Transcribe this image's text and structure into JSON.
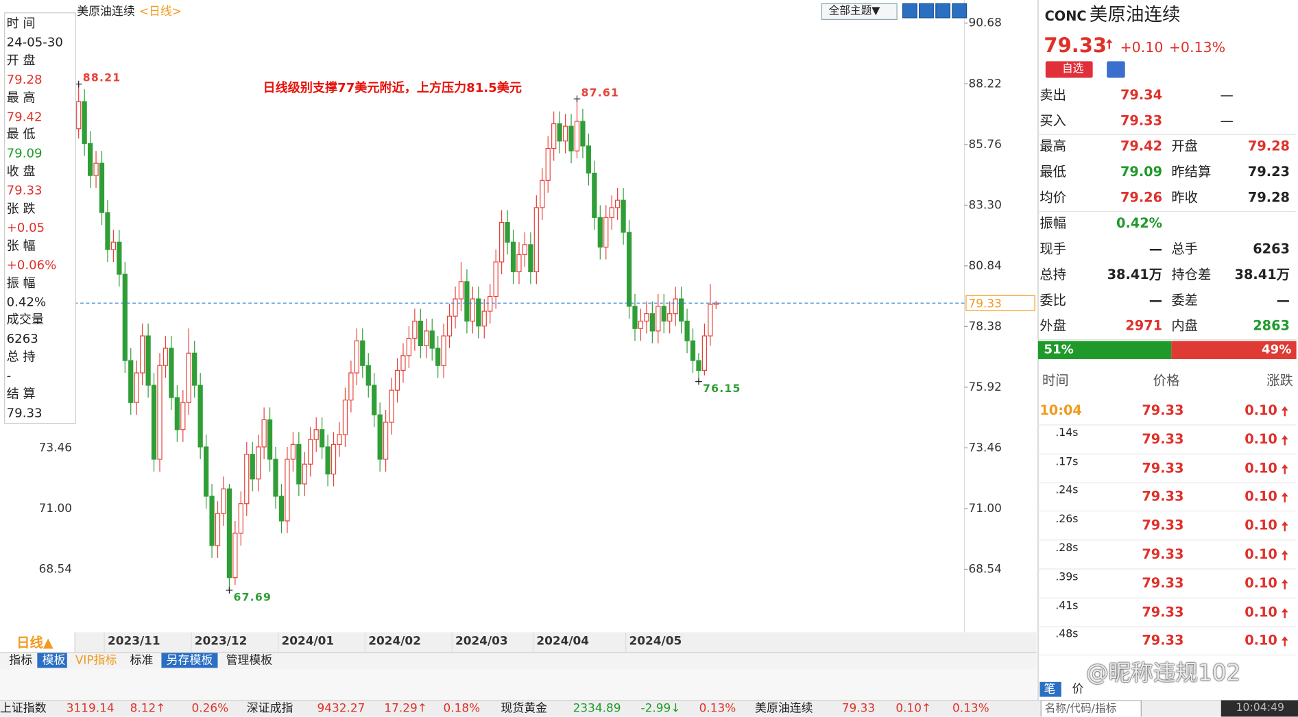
{
  "chart_data": {
    "type": "candlestick",
    "title": "美原油连续",
    "period": "<日线>",
    "annotation": "日线级别支撑77美元附近，上方压力81.5美元",
    "ylim": [
      66.12,
      91.45
    ],
    "yticks": [
      68.54,
      71.0,
      73.46,
      75.92,
      78.38,
      80.84,
      83.3,
      85.76,
      88.22,
      90.68
    ],
    "ytick_labels": [
      "68.54",
      "71.00",
      "73.46",
      "75.92",
      "78.38",
      "80.84",
      "83.30",
      "85.76",
      "88.22",
      "90.68"
    ],
    "up_color": "#e8413a",
    "down_color": "#2f9e36",
    "price_line_color": "#2a7fd0",
    "last_price": 79.33,
    "extremes": [
      88.21,
      87.61,
      67.69,
      76.15
    ],
    "categories": [
      null,
      null,
      null,
      null,
      null,
      "2023/11",
      null,
      null,
      null,
      null,
      null,
      null,
      null,
      null,
      null,
      null,
      null,
      null,
      null,
      null,
      "2023/12",
      null,
      null,
      null,
      null,
      null,
      null,
      null,
      null,
      null,
      null,
      null,
      null,
      null,
      null,
      "2024/01",
      null,
      null,
      null,
      null,
      null,
      null,
      null,
      null,
      null,
      null,
      null,
      null,
      null,
      null,
      "2024/02",
      null,
      null,
      null,
      null,
      null,
      null,
      null,
      null,
      null,
      null,
      null,
      null,
      null,
      null,
      "2024/03",
      null,
      null,
      null,
      null,
      null,
      null,
      null,
      null,
      null,
      null,
      null,
      null,
      null,
      "2024/04",
      null,
      null,
      null,
      null,
      null,
      null,
      null,
      null,
      null,
      null,
      null,
      null,
      null,
      null,
      null,
      "2024/05",
      null,
      null,
      null,
      null,
      null,
      null,
      null,
      null,
      null,
      null,
      null,
      null,
      null,
      null,
      null
    ],
    "ohlc": [
      [
        86.4,
        88.21,
        86.0,
        87.5
      ],
      [
        87.5,
        88.0,
        85.3,
        85.8
      ],
      [
        85.8,
        86.3,
        84.0,
        84.5
      ],
      [
        84.5,
        85.5,
        84.0,
        85.0
      ],
      [
        85.0,
        85.5,
        82.5,
        83.0
      ],
      [
        83.0,
        83.5,
        81.0,
        81.5
      ],
      [
        81.5,
        82.3,
        81.0,
        81.8
      ],
      [
        81.8,
        82.3,
        80.0,
        80.5
      ],
      [
        80.5,
        81.0,
        76.5,
        77.0
      ],
      [
        77.0,
        77.5,
        74.8,
        75.3
      ],
      [
        75.3,
        77.0,
        74.8,
        76.5
      ],
      [
        76.5,
        78.5,
        76.0,
        78.0
      ],
      [
        78.0,
        78.5,
        75.5,
        76.0
      ],
      [
        76.0,
        76.5,
        72.5,
        73.0
      ],
      [
        73.0,
        77.3,
        72.5,
        76.8
      ],
      [
        76.8,
        78.0,
        76.3,
        77.5
      ],
      [
        77.5,
        78.0,
        75.0,
        75.5
      ],
      [
        75.5,
        76.0,
        73.7,
        74.2
      ],
      [
        74.2,
        75.8,
        73.7,
        75.3
      ],
      [
        75.3,
        78.3,
        74.8,
        77.3
      ],
      [
        77.3,
        77.8,
        75.5,
        76.0
      ],
      [
        76.0,
        76.5,
        73.0,
        73.5
      ],
      [
        73.5,
        74.0,
        71.0,
        71.5
      ],
      [
        71.5,
        72.0,
        69.0,
        69.5
      ],
      [
        69.5,
        71.3,
        69.0,
        70.8
      ],
      [
        70.8,
        72.3,
        70.3,
        71.8
      ],
      [
        71.8,
        72.0,
        67.69,
        68.2
      ],
      [
        68.2,
        70.5,
        67.9,
        70.0
      ],
      [
        70.0,
        71.7,
        69.5,
        71.2
      ],
      [
        71.2,
        73.7,
        70.7,
        73.2
      ],
      [
        73.2,
        73.7,
        71.7,
        72.2
      ],
      [
        72.2,
        74.0,
        71.7,
        73.5
      ],
      [
        73.5,
        75.1,
        73.0,
        74.6
      ],
      [
        74.6,
        75.1,
        72.5,
        73.0
      ],
      [
        73.0,
        73.5,
        71.0,
        71.5
      ],
      [
        71.5,
        72.0,
        70.0,
        70.5
      ],
      [
        70.5,
        73.5,
        70.0,
        73.0
      ],
      [
        73.0,
        74.1,
        72.5,
        73.6
      ],
      [
        73.6,
        74.1,
        71.5,
        72.0
      ],
      [
        72.0,
        73.3,
        71.5,
        72.8
      ],
      [
        72.8,
        74.3,
        72.3,
        73.8
      ],
      [
        73.8,
        74.7,
        73.3,
        74.2
      ],
      [
        74.2,
        74.7,
        73.0,
        73.5
      ],
      [
        73.5,
        74.0,
        71.9,
        72.4
      ],
      [
        72.4,
        74.1,
        71.9,
        73.6
      ],
      [
        73.6,
        74.5,
        73.1,
        74.0
      ],
      [
        74.0,
        75.9,
        73.5,
        75.4
      ],
      [
        75.4,
        77.0,
        74.9,
        76.5
      ],
      [
        76.5,
        78.3,
        76.0,
        77.8
      ],
      [
        77.8,
        78.3,
        76.3,
        76.8
      ],
      [
        76.8,
        77.3,
        75.5,
        76.0
      ],
      [
        76.0,
        76.5,
        74.3,
        74.8
      ],
      [
        74.8,
        75.3,
        72.5,
        73.0
      ],
      [
        73.0,
        75.0,
        72.5,
        74.5
      ],
      [
        74.5,
        76.3,
        74.0,
        75.8
      ],
      [
        75.8,
        77.1,
        75.3,
        76.6
      ],
      [
        76.6,
        77.7,
        76.1,
        77.2
      ],
      [
        77.2,
        78.4,
        76.7,
        77.9
      ],
      [
        77.9,
        79.1,
        77.4,
        78.6
      ],
      [
        78.6,
        79.1,
        77.1,
        77.6
      ],
      [
        77.6,
        78.7,
        77.1,
        78.2
      ],
      [
        78.2,
        78.7,
        77.0,
        77.5
      ],
      [
        77.5,
        78.0,
        76.3,
        76.8
      ],
      [
        76.8,
        78.5,
        76.3,
        78.0
      ],
      [
        78.0,
        79.3,
        77.5,
        78.8
      ],
      [
        78.8,
        80.0,
        78.3,
        79.5
      ],
      [
        79.5,
        81.0,
        79.0,
        80.2
      ],
      [
        80.2,
        80.7,
        78.1,
        78.6
      ],
      [
        78.6,
        80.0,
        78.1,
        79.5
      ],
      [
        79.5,
        80.0,
        77.9,
        78.4
      ],
      [
        78.4,
        79.5,
        77.9,
        79.0
      ],
      [
        79.0,
        80.1,
        78.5,
        79.6
      ],
      [
        79.6,
        81.5,
        79.1,
        81.0
      ],
      [
        81.0,
        83.1,
        80.5,
        82.6
      ],
      [
        82.6,
        83.1,
        81.3,
        81.8
      ],
      [
        81.8,
        82.3,
        80.1,
        80.6
      ],
      [
        80.6,
        81.8,
        80.1,
        81.3
      ],
      [
        81.3,
        82.2,
        80.8,
        81.7
      ],
      [
        81.7,
        82.2,
        80.1,
        80.6
      ],
      [
        80.6,
        83.7,
        80.1,
        83.2
      ],
      [
        83.2,
        84.8,
        82.7,
        84.3
      ],
      [
        84.3,
        86.1,
        83.8,
        85.6
      ],
      [
        85.6,
        87.1,
        85.1,
        86.6
      ],
      [
        86.6,
        87.1,
        85.4,
        85.9
      ],
      [
        85.9,
        87.0,
        85.4,
        86.5
      ],
      [
        86.5,
        87.0,
        85.0,
        85.5
      ],
      [
        85.5,
        87.61,
        85.2,
        86.7
      ],
      [
        86.7,
        87.2,
        85.2,
        85.7
      ],
      [
        85.7,
        86.2,
        84.1,
        84.6
      ],
      [
        84.6,
        85.1,
        82.3,
        82.8
      ],
      [
        82.8,
        83.3,
        81.1,
        81.6
      ],
      [
        81.6,
        83.3,
        81.1,
        82.8
      ],
      [
        82.8,
        83.7,
        82.3,
        83.2
      ],
      [
        83.2,
        84.0,
        82.7,
        83.5
      ],
      [
        83.5,
        84.0,
        81.7,
        82.2
      ],
      [
        82.2,
        82.7,
        78.7,
        79.2
      ],
      [
        79.2,
        79.7,
        77.8,
        78.3
      ],
      [
        78.3,
        79.1,
        77.8,
        78.6
      ],
      [
        78.6,
        79.4,
        78.1,
        78.9
      ],
      [
        78.9,
        79.4,
        77.7,
        78.2
      ],
      [
        78.2,
        79.7,
        77.7,
        79.2
      ],
      [
        79.2,
        79.7,
        78.1,
        78.6
      ],
      [
        78.6,
        79.4,
        78.1,
        78.9
      ],
      [
        78.9,
        80.0,
        78.4,
        79.5
      ],
      [
        79.5,
        80.0,
        78.1,
        78.6
      ],
      [
        78.6,
        79.1,
        77.3,
        77.8
      ],
      [
        77.8,
        78.3,
        76.5,
        77.0
      ],
      [
        77.0,
        77.3,
        76.15,
        76.6
      ],
      [
        76.6,
        78.5,
        76.4,
        78.0
      ],
      [
        78.0,
        80.1,
        77.6,
        79.28
      ],
      [
        79.28,
        79.42,
        79.09,
        79.33
      ]
    ]
  },
  "header": {
    "theme_button": "全部主题▼"
  },
  "info_panel": [
    [
      "时 间",
      "24-05-30"
    ],
    [
      "开 盘",
      "79.28"
    ],
    [
      "最 高",
      "79.42"
    ],
    [
      "最 低",
      "79.09"
    ],
    [
      "收 盘",
      "79.33"
    ],
    [
      "张 跌",
      "+0.05"
    ],
    [
      "张 幅",
      "+0.06%"
    ],
    [
      "振 幅",
      "0.42%"
    ],
    [
      "成交量",
      "6263"
    ],
    [
      "总 持",
      "-"
    ],
    [
      "结 算",
      "79.33"
    ]
  ],
  "quote": {
    "code": "CONC",
    "name": "美原油连续",
    "price": "79.33",
    "change": "+0.10",
    "change_pct": "+0.13%",
    "favorite": "自选",
    "rows": [
      [
        "卖出",
        "79.34",
        "—"
      ],
      [
        "买入",
        "79.33",
        "—"
      ],
      [
        "最高",
        "79.42",
        "开盘",
        "79.28"
      ],
      [
        "最低",
        "79.09",
        "昨结算",
        "79.23"
      ],
      [
        "均价",
        "79.26",
        "昨收",
        "79.28"
      ],
      [
        "振幅",
        "0.42%"
      ],
      [
        "现手",
        "—",
        "总手",
        "6263"
      ],
      [
        "总持",
        "38.41万",
        "持仓差",
        "38.41万"
      ],
      [
        "委比",
        "—",
        "委差",
        "—"
      ],
      [
        "外盘",
        "2971",
        "内盘",
        "2863"
      ]
    ],
    "ratio": [
      "51%",
      "49%"
    ],
    "ticks_header": [
      "时间",
      "价格",
      "涨跌"
    ],
    "ticks": [
      [
        "10:04",
        "79.33",
        "0.10"
      ],
      [
        ".14s",
        "79.33",
        "0.10"
      ],
      [
        ".17s",
        "79.33",
        "0.10"
      ],
      [
        ".24s",
        "79.33",
        "0.10"
      ],
      [
        ".26s",
        "79.33",
        "0.10"
      ],
      [
        ".28s",
        "79.33",
        "0.10"
      ],
      [
        ".39s",
        "79.33",
        "0.10"
      ],
      [
        ".41s",
        "79.33",
        "0.10"
      ],
      [
        ".48s",
        "79.33",
        "0.10"
      ]
    ],
    "footer": [
      "笔",
      "价"
    ]
  },
  "tabs": {
    "period": "日线▲",
    "items": [
      "指标",
      "模板",
      "VIP指标",
      "标准",
      "另存模板",
      "管理模板"
    ]
  },
  "ticker": [
    [
      "上证指数",
      "3119.14",
      "8.12↑",
      "0.26%"
    ],
    [
      "深证成指",
      "9432.27",
      "17.29↑",
      "0.18%"
    ],
    [
      "现货黄金",
      "2334.89",
      "-2.99↓",
      "0.13%"
    ],
    [
      "美原油连续",
      "79.33",
      "0.10↑",
      "0.13%"
    ]
  ],
  "status": {
    "search": "名称/代码/指标",
    "time": "10:04:49"
  },
  "watermark": "@昵称违规102"
}
